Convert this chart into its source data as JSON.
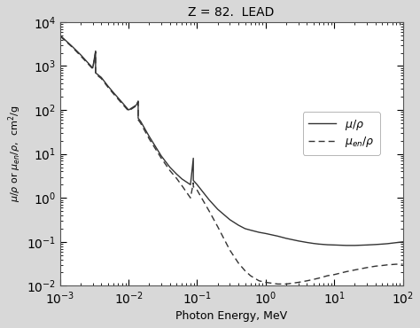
{
  "title": "Z = 82.  LEAD",
  "xlabel": "Photon Energy, MeV",
  "xlim": [
    0.001,
    100.0
  ],
  "ylim": [
    0.01,
    10000.0
  ],
  "line_color": "#333333",
  "fig_facecolor": "#d8d8d8",
  "ax_facecolor": "#ffffff",
  "mu_rho": {
    "x": [
      0.001,
      0.0015,
      0.002,
      0.003,
      0.0033,
      0.0033,
      0.004,
      0.005,
      0.006,
      0.008,
      0.01,
      0.013,
      0.0138,
      0.0138,
      0.015,
      0.02,
      0.03,
      0.04,
      0.05,
      0.06,
      0.08,
      0.088,
      0.088,
      0.1,
      0.15,
      0.2,
      0.3,
      0.4,
      0.5,
      0.6,
      0.8,
      1.0,
      1.5,
      2.0,
      3.0,
      4.0,
      5.0,
      6.0,
      8.0,
      10.0,
      15.0,
      20.0,
      30.0,
      40.0,
      50.0,
      60.0,
      80.0,
      100.0
    ],
    "y": [
      5000,
      2800,
      1800,
      900,
      2200,
      700,
      550,
      350,
      250,
      150,
      100,
      130,
      160,
      65,
      55,
      25,
      9.0,
      5.0,
      3.5,
      2.7,
      2.0,
      8.0,
      2.5,
      2.0,
      0.9,
      0.55,
      0.32,
      0.24,
      0.2,
      0.185,
      0.165,
      0.155,
      0.135,
      0.12,
      0.105,
      0.097,
      0.092,
      0.089,
      0.086,
      0.085,
      0.083,
      0.083,
      0.085,
      0.087,
      0.089,
      0.091,
      0.096,
      0.1
    ]
  },
  "mu_en_rho": {
    "x": [
      0.001,
      0.0015,
      0.002,
      0.003,
      0.0033,
      0.0033,
      0.004,
      0.005,
      0.006,
      0.008,
      0.01,
      0.013,
      0.0138,
      0.0138,
      0.015,
      0.02,
      0.03,
      0.04,
      0.05,
      0.06,
      0.08,
      0.088,
      0.088,
      0.1,
      0.15,
      0.2,
      0.3,
      0.4,
      0.5,
      0.6,
      0.8,
      1.0,
      1.5,
      2.0,
      3.0,
      4.0,
      5.0,
      6.0,
      8.0,
      10.0,
      15.0,
      20.0,
      30.0,
      40.0,
      50.0,
      60.0,
      80.0,
      100.0
    ],
    "y": [
      4800,
      2700,
      1700,
      860,
      2100,
      660,
      520,
      330,
      235,
      140,
      95,
      125,
      155,
      60,
      50,
      22,
      8.0,
      4.2,
      2.8,
      1.9,
      1.0,
      2.2,
      1.8,
      1.5,
      0.5,
      0.22,
      0.065,
      0.033,
      0.022,
      0.017,
      0.013,
      0.012,
      0.011,
      0.011,
      0.012,
      0.013,
      0.014,
      0.015,
      0.017,
      0.018,
      0.021,
      0.023,
      0.026,
      0.028,
      0.029,
      0.03,
      0.031,
      0.031
    ]
  }
}
